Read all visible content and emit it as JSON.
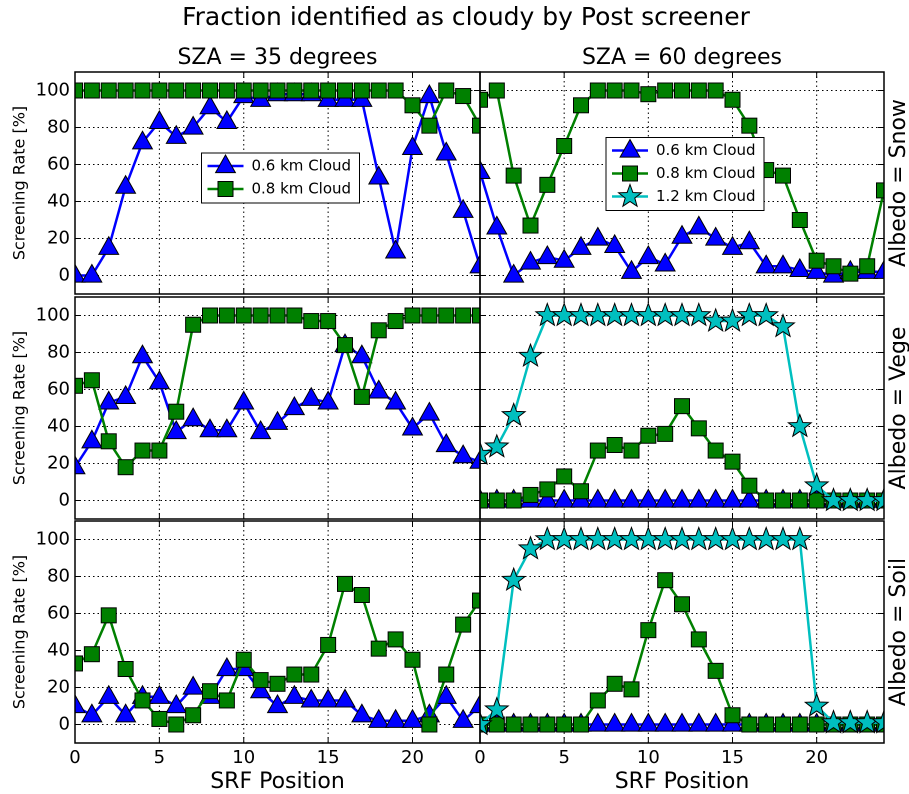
{
  "title": "Fraction identified as cloudy by Post screener",
  "chart_data": [
    {
      "type": "line",
      "title": "SZA = 35 degrees",
      "ylabel": "Screening Rate [%]",
      "xlim": [
        0,
        24
      ],
      "ylim": [
        -10,
        110
      ],
      "xticks": [
        0,
        5,
        10,
        15,
        20
      ],
      "yticks": [
        0,
        20,
        40,
        60,
        80,
        100
      ],
      "show_xtick_labels": false,
      "show_ytick_labels": true,
      "grid": true,
      "legend": "center",
      "x": [
        0,
        1,
        2,
        3,
        4,
        5,
        6,
        7,
        8,
        9,
        10,
        11,
        12,
        13,
        14,
        15,
        16,
        17,
        18,
        19,
        20,
        21,
        22,
        23,
        24
      ],
      "series": [
        {
          "name": "0.6 km Cloud",
          "color": "#0000ff",
          "marker": "triangle",
          "values": [
            0,
            0,
            15,
            48,
            72,
            83,
            75,
            80,
            91,
            83,
            97,
            95,
            98,
            98,
            98,
            95,
            95,
            95,
            53,
            13,
            69,
            97,
            66,
            35,
            5
          ]
        },
        {
          "name": "0.8 km Cloud",
          "color": "#008000",
          "marker": "square",
          "values": [
            100,
            100,
            100,
            100,
            100,
            100,
            100,
            100,
            100,
            100,
            100,
            100,
            100,
            100,
            100,
            100,
            100,
            100,
            100,
            100,
            92,
            81,
            100,
            97,
            81
          ]
        }
      ]
    },
    {
      "type": "line",
      "title": "SZA = 60 degrees",
      "side_label": "Albedo = Snow",
      "xlim": [
        0,
        24
      ],
      "ylim": [
        -10,
        110
      ],
      "xticks": [
        0,
        5,
        10,
        15,
        20
      ],
      "yticks": [
        0,
        20,
        40,
        60,
        80,
        100
      ],
      "show_xtick_labels": false,
      "show_ytick_labels": false,
      "grid": true,
      "legend": "center",
      "x": [
        0,
        1,
        2,
        3,
        4,
        5,
        6,
        7,
        8,
        9,
        10,
        11,
        12,
        13,
        14,
        15,
        16,
        17,
        18,
        19,
        20,
        21,
        22,
        23,
        24
      ],
      "series": [
        {
          "name": "0.6 km Cloud",
          "color": "#0000ff",
          "marker": "triangle",
          "values": [
            56,
            26,
            0,
            7,
            10,
            8,
            15,
            20,
            16,
            2,
            10,
            6,
            21,
            26,
            20,
            15,
            18,
            5,
            5,
            3,
            2,
            0,
            2,
            2,
            2
          ]
        },
        {
          "name": "0.8 km Cloud",
          "color": "#008000",
          "marker": "square",
          "values": [
            95,
            100,
            54,
            27,
            49,
            70,
            92,
            100,
            100,
            100,
            98,
            100,
            100,
            100,
            100,
            95,
            81,
            57,
            54,
            30,
            8,
            5,
            1,
            5,
            46
          ]
        },
        {
          "name": "1.2 km Cloud",
          "color": "#00bfbf",
          "marker": "star",
          "values": [
            null,
            null,
            null,
            null,
            null,
            null,
            null,
            null,
            null,
            null,
            null,
            null,
            null,
            null,
            null,
            null,
            null,
            null,
            null,
            null,
            null,
            null,
            null,
            null,
            null
          ]
        }
      ]
    },
    {
      "type": "line",
      "ylabel": "Screening Rate [%]",
      "xlim": [
        0,
        24
      ],
      "ylim": [
        -10,
        110
      ],
      "xticks": [
        0,
        5,
        10,
        15,
        20
      ],
      "yticks": [
        0,
        20,
        40,
        60,
        80,
        100
      ],
      "show_xtick_labels": false,
      "show_ytick_labels": true,
      "grid": true,
      "x": [
        0,
        1,
        2,
        3,
        4,
        5,
        6,
        7,
        8,
        9,
        10,
        11,
        12,
        13,
        14,
        15,
        16,
        17,
        18,
        19,
        20,
        21,
        22,
        23,
        24
      ],
      "series": [
        {
          "name": "0.6 km Cloud",
          "color": "#0000ff",
          "marker": "triangle",
          "values": [
            18,
            32,
            53,
            56,
            78,
            64,
            37,
            44,
            38,
            38,
            53,
            37,
            42,
            50,
            55,
            53,
            84,
            78,
            59,
            53,
            39,
            47,
            30,
            24,
            21
          ]
        },
        {
          "name": "0.8 km Cloud",
          "color": "#008000",
          "marker": "square",
          "values": [
            62,
            65,
            32,
            18,
            27,
            27,
            48,
            95,
            100,
            100,
            100,
            100,
            100,
            100,
            97,
            97,
            84,
            56,
            92,
            97,
            100,
            100,
            100,
            100,
            100
          ]
        }
      ]
    },
    {
      "type": "line",
      "side_label": "Albedo = Vege",
      "xlim": [
        0,
        24
      ],
      "ylim": [
        -10,
        110
      ],
      "xticks": [
        0,
        5,
        10,
        15,
        20
      ],
      "yticks": [
        0,
        20,
        40,
        60,
        80,
        100
      ],
      "show_xtick_labels": false,
      "show_ytick_labels": false,
      "grid": true,
      "x": [
        0,
        1,
        2,
        3,
        4,
        5,
        6,
        7,
        8,
        9,
        10,
        11,
        12,
        13,
        14,
        15,
        16,
        17,
        18,
        19,
        20,
        21,
        22,
        23,
        24
      ],
      "series": [
        {
          "name": "0.6 km Cloud",
          "color": "#0000ff",
          "marker": "triangle",
          "values": [
            0,
            0,
            0,
            0,
            0,
            0,
            0,
            0,
            0,
            0,
            0,
            0,
            0,
            0,
            0,
            0,
            0,
            0,
            0,
            0,
            0,
            0,
            0,
            0,
            0
          ]
        },
        {
          "name": "0.8 km Cloud",
          "color": "#008000",
          "marker": "square",
          "values": [
            0,
            0,
            0,
            3,
            6,
            13,
            5,
            27,
            30,
            27,
            35,
            36,
            51,
            39,
            27,
            21,
            8,
            0,
            0,
            0,
            0,
            0,
            0,
            0,
            0
          ]
        },
        {
          "name": "1.2 km Cloud",
          "color": "#00bfbf",
          "marker": "star",
          "values": [
            25,
            29,
            46,
            78,
            100,
            100,
            100,
            100,
            100,
            100,
            100,
            100,
            100,
            100,
            97,
            97,
            100,
            100,
            94,
            40,
            8,
            0,
            0,
            0,
            0
          ]
        }
      ]
    },
    {
      "type": "line",
      "ylabel": "Screening Rate [%]",
      "xlabel": "SRF Position",
      "xlim": [
        0,
        24
      ],
      "ylim": [
        -10,
        110
      ],
      "xticks": [
        0,
        5,
        10,
        15,
        20
      ],
      "yticks": [
        0,
        20,
        40,
        60,
        80,
        100
      ],
      "show_xtick_labels": true,
      "show_ytick_labels": true,
      "grid": true,
      "x": [
        0,
        1,
        2,
        3,
        4,
        5,
        6,
        7,
        8,
        9,
        10,
        11,
        12,
        13,
        14,
        15,
        16,
        17,
        18,
        19,
        20,
        21,
        22,
        23,
        24
      ],
      "series": [
        {
          "name": "0.6 km Cloud",
          "color": "#0000ff",
          "marker": "triangle",
          "values": [
            10,
            5,
            15,
            5,
            15,
            15,
            10,
            20,
            15,
            30,
            30,
            18,
            10,
            15,
            13,
            13,
            13,
            5,
            2,
            2,
            2,
            5,
            15,
            2,
            10
          ]
        },
        {
          "name": "0.8 km Cloud",
          "color": "#008000",
          "marker": "square",
          "values": [
            33,
            38,
            59,
            30,
            13,
            3,
            0,
            5,
            18,
            13,
            35,
            24,
            22,
            27,
            27,
            43,
            76,
            70,
            41,
            46,
            35,
            0,
            27,
            54,
            67
          ]
        }
      ]
    },
    {
      "type": "line",
      "side_label": "Albedo = Soil",
      "xlabel": "SRF Position",
      "xlim": [
        0,
        24
      ],
      "ylim": [
        -10,
        110
      ],
      "xticks": [
        0,
        5,
        10,
        15,
        20
      ],
      "yticks": [
        0,
        20,
        40,
        60,
        80,
        100
      ],
      "show_xtick_labels": true,
      "show_ytick_labels": false,
      "grid": true,
      "x": [
        0,
        1,
        2,
        3,
        4,
        5,
        6,
        7,
        8,
        9,
        10,
        11,
        12,
        13,
        14,
        15,
        16,
        17,
        18,
        19,
        20,
        21,
        22,
        23,
        24
      ],
      "series": [
        {
          "name": "0.6 km Cloud",
          "color": "#0000ff",
          "marker": "triangle",
          "values": [
            0,
            0,
            0,
            0,
            0,
            0,
            0,
            0,
            0,
            0,
            0,
            0,
            0,
            0,
            0,
            0,
            0,
            0,
            0,
            0,
            0,
            0,
            0,
            0,
            0
          ]
        },
        {
          "name": "0.8 km Cloud",
          "color": "#008000",
          "marker": "square",
          "values": [
            0,
            0,
            0,
            0,
            0,
            0,
            0,
            13,
            22,
            19,
            51,
            78,
            65,
            46,
            29,
            5,
            0,
            0,
            0,
            0,
            0,
            0,
            0,
            0,
            0
          ]
        },
        {
          "name": "1.2 km Cloud",
          "color": "#00bfbf",
          "marker": "star",
          "values": [
            0,
            8,
            78,
            95,
            100,
            100,
            100,
            100,
            100,
            100,
            100,
            100,
            100,
            100,
            100,
            100,
            100,
            100,
            100,
            100,
            10,
            1,
            1,
            1,
            1
          ]
        }
      ]
    }
  ]
}
